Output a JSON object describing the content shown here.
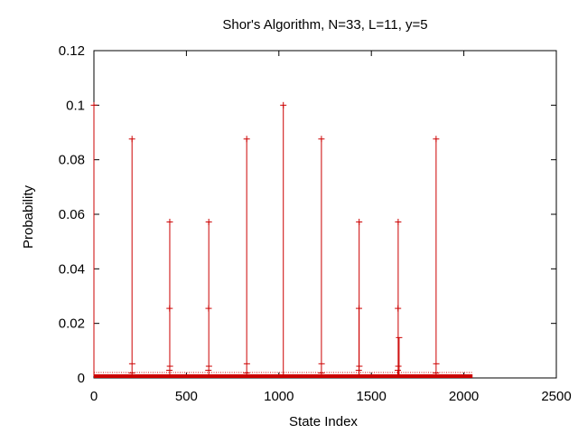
{
  "chart_data": {
    "type": "line",
    "title": "Shor's Algorithm, N=33, L=11, y=5",
    "xlabel": "State Index",
    "ylabel": "Probability",
    "xlim": [
      0,
      2500
    ],
    "ylim": [
      0,
      0.12
    ],
    "xticks": [
      0,
      500,
      1000,
      1500,
      2000,
      2500
    ],
    "yticks": [
      0,
      0.02,
      0.04,
      0.06,
      0.08,
      0.1,
      0.12
    ],
    "xtick_labels": [
      "0",
      "500",
      "1000",
      "1500",
      "2000",
      "2500"
    ],
    "ytick_labels": [
      "0",
      "0.02",
      "0.04",
      "0.06",
      "0.08",
      "0.1",
      "0.12"
    ],
    "grid": false,
    "legend": "none",
    "color": "#cc0000",
    "marker": "plus",
    "x_range": [
      0,
      2047
    ],
    "baseline": 0.0002,
    "series": [
      {
        "points": [
          {
            "x": 0,
            "y": 0.1
          },
          {
            "x": 206,
            "y": 0.0876
          },
          {
            "x": 207,
            "y": 0.0052
          },
          {
            "x": 205,
            "y": 0.0018
          },
          {
            "x": 410,
            "y": 0.0572
          },
          {
            "x": 409,
            "y": 0.0255
          },
          {
            "x": 411,
            "y": 0.0043
          },
          {
            "x": 408,
            "y": 0.0028
          },
          {
            "x": 621,
            "y": 0.0572
          },
          {
            "x": 620,
            "y": 0.0255
          },
          {
            "x": 622,
            "y": 0.0043
          },
          {
            "x": 619,
            "y": 0.0028
          },
          {
            "x": 826,
            "y": 0.0876
          },
          {
            "x": 827,
            "y": 0.0052
          },
          {
            "x": 825,
            "y": 0.0018
          },
          {
            "x": 1024,
            "y": 0.1
          },
          {
            "x": 1230,
            "y": 0.0876
          },
          {
            "x": 1231,
            "y": 0.0052
          },
          {
            "x": 1229,
            "y": 0.0018
          },
          {
            "x": 1434,
            "y": 0.0572
          },
          {
            "x": 1433,
            "y": 0.0255
          },
          {
            "x": 1435,
            "y": 0.0043
          },
          {
            "x": 1432,
            "y": 0.0028
          },
          {
            "x": 1645,
            "y": 0.0572
          },
          {
            "x": 1644,
            "y": 0.0255
          },
          {
            "x": 1646,
            "y": 0.0043
          },
          {
            "x": 1643,
            "y": 0.0028
          },
          {
            "x": 1650,
            "y": 0.0148
          },
          {
            "x": 1850,
            "y": 0.0876
          },
          {
            "x": 1851,
            "y": 0.0052
          },
          {
            "x": 1849,
            "y": 0.0018
          }
        ]
      }
    ]
  }
}
